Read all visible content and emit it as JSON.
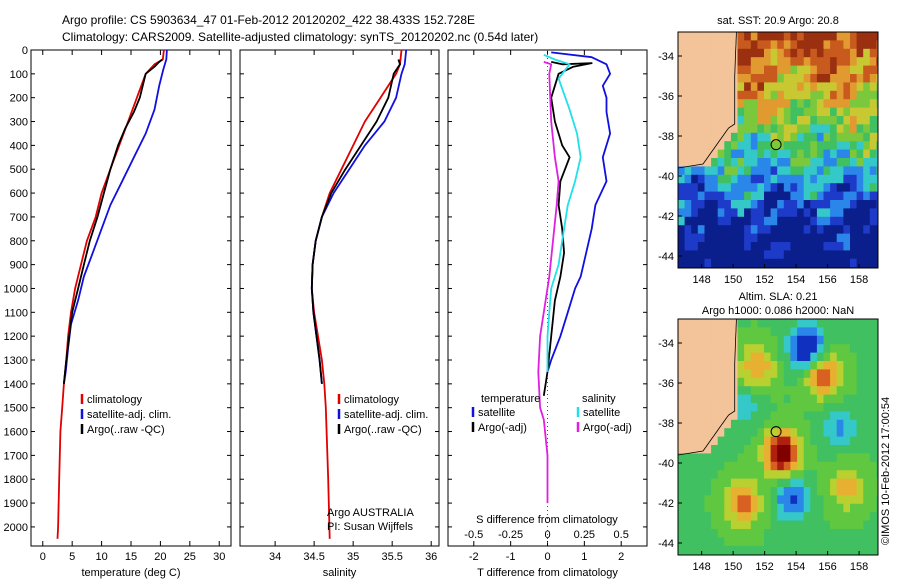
{
  "header": {
    "line1": "Argo profile: CS 5903634_47 01-Feb-2012 20120202_422 38.433S 152.728E",
    "line2": "Climatology: CARS2009. Satellite-adjusted climatology: synTS_20120202.nc (0.54d later)"
  },
  "colors": {
    "climatology": "#e00000",
    "satellite": "#1010e0",
    "argo": "#000000",
    "satellite_diff": "#20e0e8",
    "argo_adj_diff": "#e020e0",
    "land": "#f3c39a"
  },
  "chart_data": [
    {
      "id": "temperature",
      "type": "line",
      "xlabel": "temperature (deg C)",
      "ylabel": "",
      "xlim": [
        -2,
        32
      ],
      "ylim": [
        2080,
        0
      ],
      "y_reversed": true,
      "xticks": [
        "0",
        "5",
        "10",
        "15",
        "20",
        "25",
        "30"
      ],
      "yticks": [
        "0",
        "100",
        "200",
        "300",
        "400",
        "500",
        "600",
        "700",
        "800",
        "900",
        "1000",
        "1100",
        "1200",
        "1300",
        "1400",
        "1500",
        "1600",
        "1700",
        "1800",
        "1900",
        "2000"
      ],
      "legend": [
        "climatology",
        "satellite-adj. clim.",
        "Argo(..raw -QC)"
      ],
      "series": [
        {
          "name": "climatology",
          "color": "#e00000",
          "points": [
            [
              20.6,
              0
            ],
            [
              20.4,
              40
            ],
            [
              19,
              60
            ],
            [
              17.5,
              100
            ],
            [
              16,
              200
            ],
            [
              14.5,
              300
            ],
            [
              13,
              400
            ],
            [
              11.5,
              500
            ],
            [
              10,
              600
            ],
            [
              9,
              700
            ],
            [
              7.5,
              800
            ],
            [
              6.5,
              900
            ],
            [
              5.5,
              1000
            ],
            [
              4.8,
              1100
            ],
            [
              4.3,
              1200
            ],
            [
              4,
              1300
            ],
            [
              3.6,
              1400
            ],
            [
              3.3,
              1500
            ],
            [
              3,
              1600
            ],
            [
              2.8,
              1800
            ],
            [
              2.6,
              2000
            ],
            [
              2.5,
              2050
            ]
          ]
        },
        {
          "name": "satellite-adj. clim.",
          "color": "#1010e0",
          "points": [
            [
              21.1,
              0
            ],
            [
              21,
              40
            ],
            [
              20.5,
              80
            ],
            [
              19.8,
              150
            ],
            [
              19,
              250
            ],
            [
              17.5,
              350
            ],
            [
              15.5,
              450
            ],
            [
              13.5,
              550
            ],
            [
              11.5,
              650
            ],
            [
              10,
              750
            ],
            [
              8.5,
              850
            ],
            [
              7,
              950
            ],
            [
              6,
              1050
            ],
            [
              4.8,
              1150
            ],
            [
              4.3,
              1250
            ],
            [
              3.9,
              1350
            ],
            [
              3.6,
              1400
            ]
          ]
        },
        {
          "name": "Argo(..raw -QC)",
          "color": "#000000",
          "points": [
            [
              20.3,
              40
            ],
            [
              19.8,
              50
            ],
            [
              19,
              70
            ],
            [
              17.5,
              100
            ],
            [
              16.5,
              200
            ],
            [
              15.5,
              260
            ],
            [
              14,
              330
            ],
            [
              12.8,
              400
            ],
            [
              11.5,
              500
            ],
            [
              10.4,
              600
            ],
            [
              9.3,
              700
            ],
            [
              8,
              800
            ],
            [
              7,
              900
            ],
            [
              6,
              1000
            ],
            [
              5,
              1100
            ],
            [
              4.5,
              1200
            ],
            [
              4,
              1300
            ],
            [
              3.6,
              1400
            ]
          ]
        }
      ]
    },
    {
      "id": "salinity",
      "type": "line",
      "xlabel": "salinity",
      "ylabel": "",
      "xlim": [
        33.55,
        36.1
      ],
      "ylim": [
        2080,
        0
      ],
      "y_reversed": true,
      "xticks": [
        "34",
        "34.5",
        "35",
        "35.5",
        "36"
      ],
      "legend": [
        "climatology",
        "satellite-adj. clim.",
        "Argo(..raw -QC)"
      ],
      "annotation": [
        "Argo AUSTRALIA",
        "PI: Susan Wijffels"
      ],
      "series": [
        {
          "name": "climatology",
          "color": "#e00000",
          "points": [
            [
              35.62,
              0
            ],
            [
              35.6,
              60
            ],
            [
              35.55,
              100
            ],
            [
              35.35,
              200
            ],
            [
              35.15,
              300
            ],
            [
              35,
              400
            ],
            [
              34.85,
              500
            ],
            [
              34.7,
              600
            ],
            [
              34.6,
              700
            ],
            [
              34.52,
              800
            ],
            [
              34.48,
              900
            ],
            [
              34.47,
              1000
            ],
            [
              34.5,
              1100
            ],
            [
              34.55,
              1200
            ],
            [
              34.6,
              1300
            ],
            [
              34.63,
              1400
            ],
            [
              34.65,
              1500
            ],
            [
              34.68,
              1800
            ],
            [
              34.7,
              2050
            ]
          ]
        },
        {
          "name": "satellite-adj. clim.",
          "color": "#1010e0",
          "points": [
            [
              35.68,
              0
            ],
            [
              35.66,
              60
            ],
            [
              35.62,
              100
            ],
            [
              35.55,
              200
            ],
            [
              35.4,
              300
            ],
            [
              35.15,
              400
            ],
            [
              34.95,
              500
            ],
            [
              34.75,
              600
            ],
            [
              34.6,
              700
            ],
            [
              34.52,
              800
            ],
            [
              34.48,
              900
            ],
            [
              34.47,
              1000
            ],
            [
              34.49,
              1100
            ],
            [
              34.53,
              1200
            ],
            [
              34.57,
              1300
            ],
            [
              34.6,
              1400
            ]
          ]
        },
        {
          "name": "Argo(..raw -QC)",
          "color": "#000000",
          "points": [
            [
              35.58,
              40
            ],
            [
              35.6,
              60
            ],
            [
              35.52,
              100
            ],
            [
              35.45,
              200
            ],
            [
              35.3,
              300
            ],
            [
              35.1,
              400
            ],
            [
              34.9,
              500
            ],
            [
              34.72,
              600
            ],
            [
              34.6,
              700
            ],
            [
              34.52,
              800
            ],
            [
              34.48,
              900
            ],
            [
              34.47,
              1000
            ],
            [
              34.49,
              1100
            ],
            [
              34.53,
              1200
            ],
            [
              34.57,
              1300
            ],
            [
              34.6,
              1400
            ]
          ]
        }
      ]
    },
    {
      "id": "differences",
      "type": "line",
      "xlabel": "T difference from climatology",
      "xlabel_top": "S difference from climatology",
      "xlim": [
        -2.7,
        2.7
      ],
      "ylim": [
        2080,
        0
      ],
      "y_reversed": true,
      "xticks": [
        "-2",
        "-1",
        "0",
        "1",
        "2"
      ],
      "xticks_salinity": [
        "-0.5",
        "-0.25",
        "0",
        "0.25",
        "0.5"
      ],
      "legend_headers": [
        "temperature",
        "salinity"
      ],
      "legend": [
        "satellite",
        "Argo(-adj)",
        "satellite",
        "Argo(-adj)"
      ],
      "series": [
        {
          "name": "temperature satellite",
          "color": "#1010e0",
          "points": [
            [
              0.1,
              10
            ],
            [
              1.2,
              30
            ],
            [
              1.6,
              60
            ],
            [
              1.7,
              100
            ],
            [
              1.5,
              150
            ],
            [
              1.6,
              200
            ],
            [
              1.6,
              260
            ],
            [
              1.7,
              350
            ],
            [
              1.5,
              450
            ],
            [
              1.6,
              550
            ],
            [
              1.3,
              650
            ],
            [
              1.2,
              750
            ],
            [
              1.05,
              850
            ],
            [
              0.9,
              950
            ],
            [
              0.75,
              1000
            ],
            [
              0.55,
              1100
            ],
            [
              0.35,
              1200
            ],
            [
              0.1,
              1300
            ],
            [
              0,
              1350
            ]
          ]
        },
        {
          "name": "temperature Argo(-adj)",
          "color": "#000000",
          "points": [
            [
              0.1,
              50
            ],
            [
              0.4,
              60
            ],
            [
              1.2,
              55
            ],
            [
              0.7,
              70
            ],
            [
              0.3,
              100
            ],
            [
              0.1,
              200
            ],
            [
              0.2,
              300
            ],
            [
              0.4,
              400
            ],
            [
              0.6,
              450
            ],
            [
              0.35,
              550
            ],
            [
              0.3,
              650
            ],
            [
              0.4,
              750
            ],
            [
              0.45,
              850
            ],
            [
              0.35,
              950
            ],
            [
              0.2,
              1050
            ],
            [
              0.1,
              1200
            ],
            [
              0,
              1350
            ],
            [
              -0.1,
              1450
            ]
          ]
        },
        {
          "name": "salinity satellite",
          "color": "#20e0e8",
          "points": [
            [
              -0.1,
              20
            ],
            [
              0.2,
              40
            ],
            [
              0.6,
              60
            ],
            [
              0.5,
              80
            ],
            [
              0.3,
              120
            ],
            [
              0.6,
              250
            ],
            [
              0.8,
              350
            ],
            [
              0.9,
              450
            ],
            [
              0.75,
              550
            ],
            [
              0.55,
              650
            ],
            [
              0.4,
              800
            ],
            [
              0.3,
              900
            ],
            [
              0.1,
              1000
            ],
            [
              0.05,
              1100
            ],
            [
              0,
              1200
            ],
            [
              0,
              1350
            ]
          ]
        },
        {
          "name": "salinity Argo(-adj)",
          "color": "#e020e0",
          "points": [
            [
              -0.1,
              50
            ],
            [
              0.1,
              60
            ],
            [
              0.05,
              100
            ],
            [
              0.1,
              300
            ],
            [
              0.2,
              450
            ],
            [
              0.3,
              550
            ],
            [
              0.25,
              650
            ],
            [
              0.15,
              800
            ],
            [
              0.05,
              950
            ],
            [
              -0.1,
              1100
            ],
            [
              -0.2,
              1200
            ],
            [
              -0.25,
              1350
            ],
            [
              -0.2,
              1500
            ],
            [
              -0.1,
              1550
            ],
            [
              0,
              1700
            ],
            [
              0,
              1900
            ]
          ]
        }
      ]
    },
    {
      "id": "sst_map",
      "type": "heatmap",
      "title": "sat. SST: 20.9  Argo: 20.8",
      "xticks": [
        "148",
        "150",
        "152",
        "154",
        "156",
        "158"
      ],
      "yticks": [
        "-34",
        "-36",
        "-38",
        "-40",
        "-42",
        "-44"
      ],
      "xlim": [
        146.5,
        159.2
      ],
      "ylim": [
        -44.6,
        -32.8
      ],
      "profile_location": [
        152.728,
        -38.433
      ]
    },
    {
      "id": "sla_map",
      "type": "heatmap",
      "title_line1": "Altim. SLA: 0.21",
      "title_line2": "Argo h1000: 0.086  h2000: NaN",
      "xticks": [
        "148",
        "150",
        "152",
        "154",
        "156",
        "158"
      ],
      "yticks": [
        "-34",
        "-36",
        "-38",
        "-40",
        "-42",
        "-44"
      ],
      "xlim": [
        146.5,
        159.2
      ],
      "ylim": [
        -44.6,
        -32.8
      ],
      "profile_location": [
        152.728,
        -38.433
      ]
    }
  ],
  "credit": "©IMOS 10-Feb-2012 17:00:54"
}
